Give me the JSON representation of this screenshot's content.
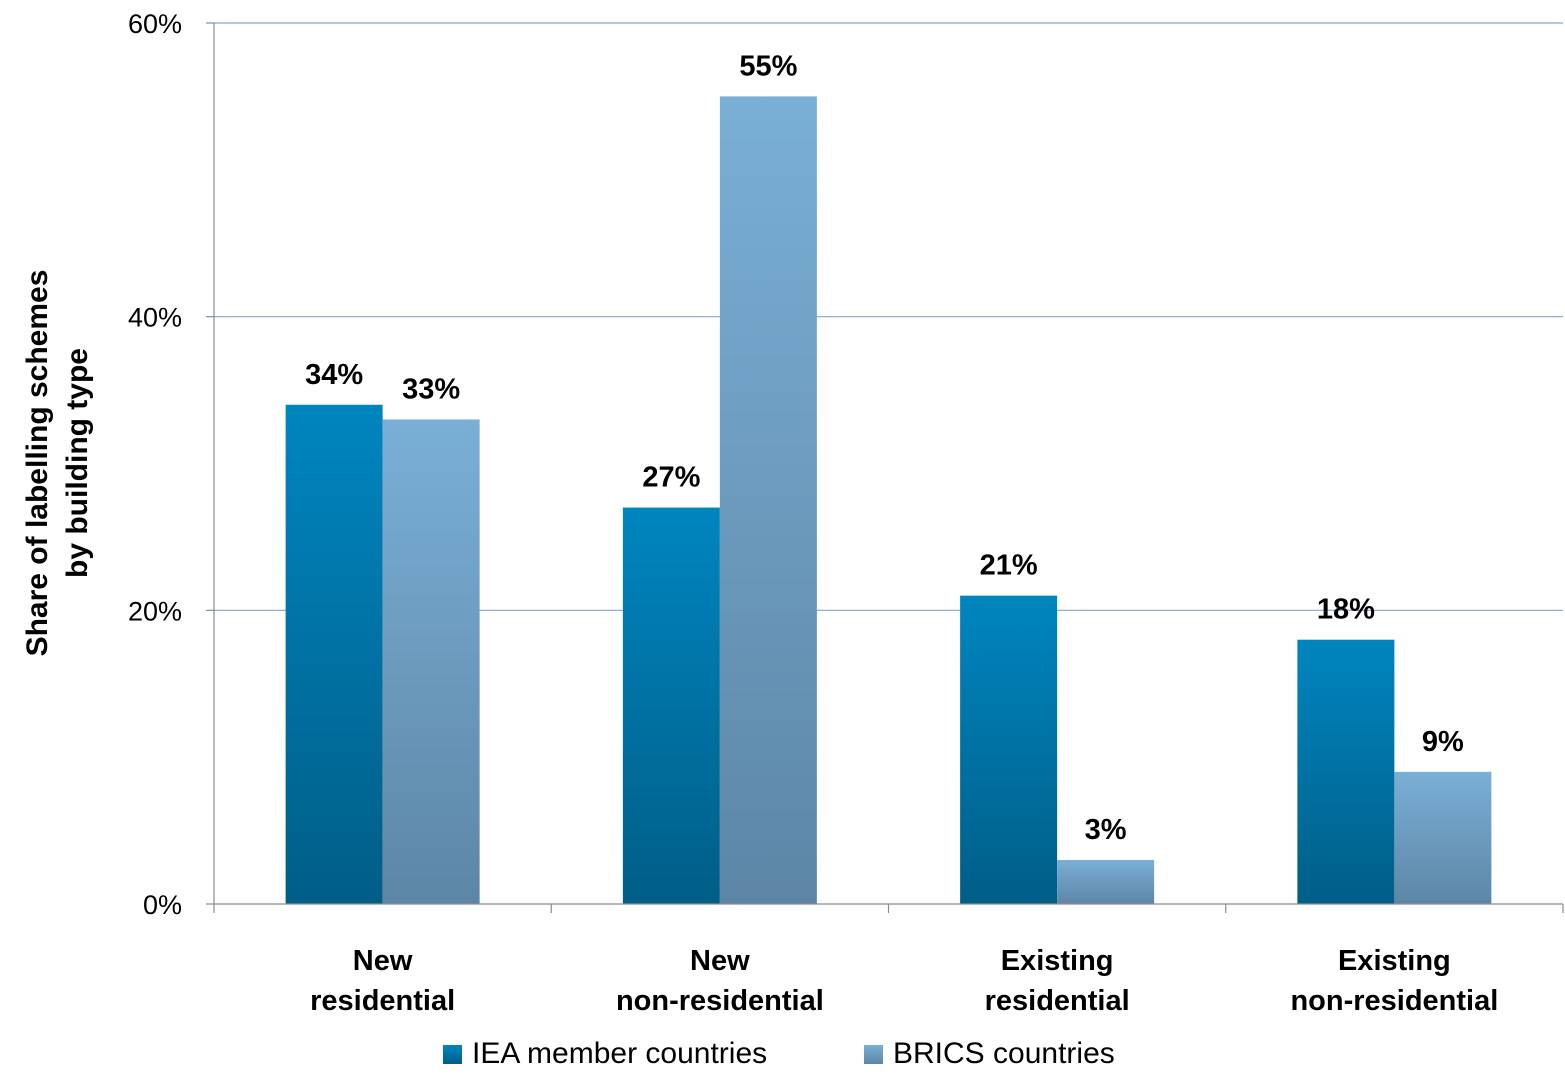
{
  "chart_data": {
    "type": "bar",
    "title": "",
    "ylabel_lines": [
      "Share of labelling schemes",
      "by building type"
    ],
    "xlabel": "",
    "categories": [
      [
        "New",
        "residential"
      ],
      [
        "New",
        "non-residential"
      ],
      [
        "Existing",
        "residential"
      ],
      [
        "Existing",
        "non-residential"
      ]
    ],
    "series": [
      {
        "name": "IEA member countries",
        "values": [
          34,
          27,
          21,
          18
        ],
        "data_labels": [
          "34%",
          "27%",
          "21%",
          "18%"
        ],
        "color_top": "#0085bf",
        "color_bottom": "#005e87"
      },
      {
        "name": "BRICS countries",
        "values": [
          33,
          55,
          3,
          9
        ],
        "data_labels": [
          "33%",
          "55%",
          "3%",
          "9%"
        ],
        "color_top": "#7aafd6",
        "color_bottom": "#5d86a6"
      }
    ],
    "ylim": [
      0,
      60
    ],
    "yticks": [
      0,
      20,
      40,
      60
    ],
    "ytick_labels": [
      "0%",
      "20%",
      "40%",
      "60%"
    ],
    "grid": true,
    "grid_color": "#8aa4c8",
    "axis_color": "#8c8c8c",
    "legend": "bottom"
  }
}
